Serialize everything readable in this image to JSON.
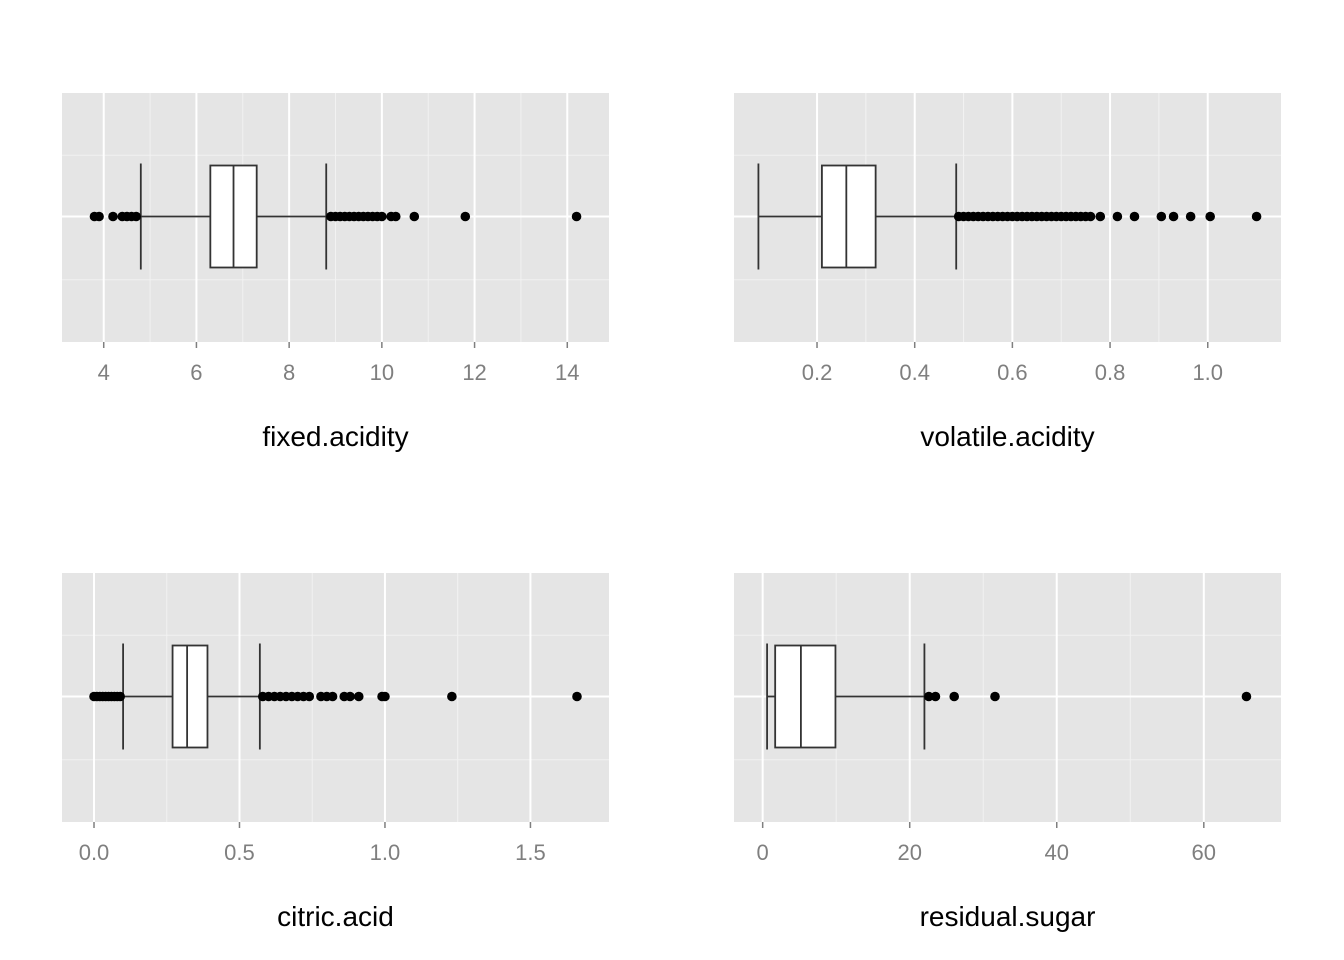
{
  "chart_data": [
    {
      "type": "boxplot",
      "xlabel": "fixed.acidity",
      "xlim": [
        3.1,
        14.9
      ],
      "xticks": [
        4,
        6,
        8,
        10,
        12,
        14
      ],
      "xtick_labels": [
        "4",
        "6",
        "8",
        "10",
        "12",
        "14"
      ],
      "grid": true,
      "box": {
        "q1": 6.3,
        "median": 6.8,
        "q3": 7.3
      },
      "whiskers": {
        "low": 4.8,
        "high": 8.8,
        "cap": true
      },
      "outliers": [
        3.8,
        3.9,
        4.2,
        4.4,
        4.5,
        4.6,
        4.7,
        8.9,
        9.0,
        9.1,
        9.2,
        9.3,
        9.4,
        9.5,
        9.6,
        9.7,
        9.8,
        9.9,
        10.0,
        10.2,
        10.3,
        10.7,
        11.8,
        14.2
      ]
    },
    {
      "type": "boxplot",
      "xlabel": "volatile.acidity",
      "xlim": [
        0.03,
        1.15
      ],
      "xticks": [
        0.2,
        0.4,
        0.6,
        0.8,
        1.0
      ],
      "xtick_labels": [
        "0.2",
        "0.4",
        "0.6",
        "0.8",
        "1.0"
      ],
      "grid": true,
      "box": {
        "q1": 0.21,
        "median": 0.26,
        "q3": 0.32
      },
      "whiskers": {
        "low": 0.08,
        "high": 0.485,
        "cap": true
      },
      "outliers": [
        0.49,
        0.5,
        0.51,
        0.52,
        0.53,
        0.54,
        0.55,
        0.56,
        0.57,
        0.58,
        0.59,
        0.6,
        0.61,
        0.62,
        0.63,
        0.64,
        0.65,
        0.66,
        0.67,
        0.68,
        0.69,
        0.7,
        0.71,
        0.72,
        0.73,
        0.74,
        0.75,
        0.76,
        0.78,
        0.815,
        0.85,
        0.905,
        0.93,
        0.965,
        1.005,
        1.1
      ]
    },
    {
      "type": "boxplot",
      "xlabel": "citric.acid",
      "xlim": [
        -0.11,
        1.77
      ],
      "xticks": [
        0.0,
        0.5,
        1.0,
        1.5
      ],
      "xtick_labels": [
        "0.0",
        "0.5",
        "1.0",
        "1.5"
      ],
      "grid": true,
      "box": {
        "q1": 0.27,
        "median": 0.32,
        "q3": 0.39
      },
      "whiskers": {
        "low": 0.1,
        "high": 0.57,
        "cap": true
      },
      "outliers": [
        0.0,
        0.01,
        0.02,
        0.03,
        0.04,
        0.05,
        0.06,
        0.07,
        0.08,
        0.09,
        0.58,
        0.6,
        0.62,
        0.64,
        0.66,
        0.68,
        0.7,
        0.72,
        0.74,
        0.78,
        0.8,
        0.82,
        0.86,
        0.88,
        0.91,
        0.99,
        1.0,
        1.23,
        1.66
      ]
    },
    {
      "type": "boxplot",
      "xlabel": "residual.sugar",
      "xlim": [
        -3.9,
        70.5
      ],
      "xticks": [
        0,
        20,
        40,
        60
      ],
      "xtick_labels": [
        "0",
        "20",
        "40",
        "60"
      ],
      "grid": true,
      "box": {
        "q1": 1.7,
        "median": 5.2,
        "q3": 9.9
      },
      "whiskers": {
        "low": 0.6,
        "high": 22.0,
        "cap": true
      },
      "outliers": [
        22.6,
        23.5,
        26.05,
        31.6,
        65.8
      ]
    }
  ]
}
